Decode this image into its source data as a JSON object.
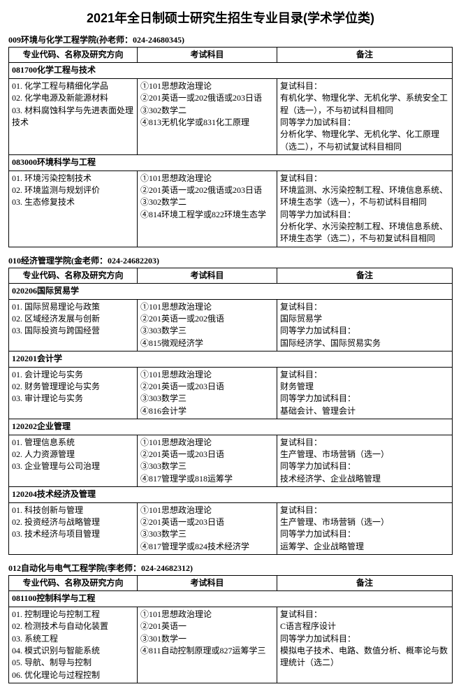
{
  "title": "2021年全日制硕士研究生招生专业目录(学术学位类)",
  "headers": {
    "c1": "专业代码、名称及研究方向",
    "c2": "考试科目",
    "c3": "备注"
  },
  "sections": [
    {
      "dept": "009环境与化学工程学院(孙老师：024-24680345)",
      "rows": [
        {
          "type": "major",
          "code": "081700化学工程与技术"
        },
        {
          "type": "data",
          "dir": "01. 化学工程与精细化学品\n02. 化学电源及新能源材料\n03. 材料腐蚀科学与先进表面处理技术",
          "exam": "①101思想政治理论\n②201英语一或202俄语或203日语\n③302数学二\n④813无机化学或831化工原理",
          "note": "复试科目：\n有机化学、物理化学、无机化学、系统安全工程（选一），不与初试科目相同\n同等学力加试科目：\n分析化学、物理化学、无机化学、化工原理（选二），不与初试复试科目相同"
        },
        {
          "type": "major",
          "code": "083000环境科学与工程"
        },
        {
          "type": "data",
          "dir": "01. 环境污染控制技术\n02. 环境监测与规划评价\n03. 生态修复技术",
          "exam": "①101思想政治理论\n②201英语一或202俄语或203日语\n③302数学二\n④814环境工程学或822环境生态学",
          "note": "复试科目：\n环境监测、水污染控制工程、环境信息系统、环境生态学（选一），不与初试科目相同\n同等学力加试科目：\n分析化学、水污染控制工程、环境信息系统、环境生态学（选二），不与初复试科目相同"
        }
      ]
    },
    {
      "dept": "010经济管理学院(金老师：024-24682203)",
      "rows": [
        {
          "type": "major",
          "code": "020206国际贸易学"
        },
        {
          "type": "data",
          "dir": "01. 国际贸易理论与政策\n02. 区域经济发展与创新\n03. 国际投资与跨国经营",
          "exam": "①101思想政治理论\n②201英语一或202俄语\n③303数学三\n④815微观经济学",
          "note": "复试科目：\n国际贸易学\n同等学力加试科目：\n国际经济学、国际贸易实务"
        },
        {
          "type": "major",
          "code": "120201会计学"
        },
        {
          "type": "data",
          "dir": "01. 会计理论与实务\n02. 财务管理理论与实务\n03. 审计理论与实务",
          "exam": "①101思想政治理论\n②201英语一或203日语\n③303数学三\n④816会计学",
          "note": "复试科目：\n财务管理\n同等学力加试科目：\n基础会计、管理会计"
        },
        {
          "type": "major",
          "code": "120202企业管理"
        },
        {
          "type": "data",
          "dir": "01. 管理信息系统\n02. 人力资源管理\n03. 企业管理与公司治理",
          "exam": "①101思想政治理论\n②201英语一或203日语\n③303数学三\n④817管理学或818运筹学",
          "note": "复试科目：\n生产管理、市场营销（选一）\n同等学力加试科目：\n技术经济学、企业战略管理"
        },
        {
          "type": "major",
          "code": "120204技术经济及管理"
        },
        {
          "type": "data",
          "dir": "01. 科技创新与管理\n02. 投资经济与战略管理\n03. 技术经济与项目管理",
          "exam": "①101思想政治理论\n②201英语一或203日语\n③303数学三\n④817管理学或824技术经济学",
          "note": "复试科目：\n生产管理、市场营销（选一）\n同等学力加试科目：\n运筹学、企业战略管理"
        }
      ]
    },
    {
      "dept": "012自动化与电气工程学院(李老师：024-24682312)",
      "rows": [
        {
          "type": "major",
          "code": "081100控制科学与工程"
        },
        {
          "type": "data",
          "dir": "01. 控制理论与控制工程\n02. 检测技术与自动化装置\n03. 系统工程\n04. 模式识别与智能系统\n05. 导航、制导与控制\n06. 优化理论与过程控制",
          "exam": "①101思想政治理论\n②201英语一\n③301数学一\n④811自动控制原理或827运筹学三",
          "note": "复试科目：\nC语言程序设计\n同等学力加试科目：\n模拟电子技术、电路、数值分析、概率论与数理统计（选二）"
        }
      ]
    }
  ]
}
